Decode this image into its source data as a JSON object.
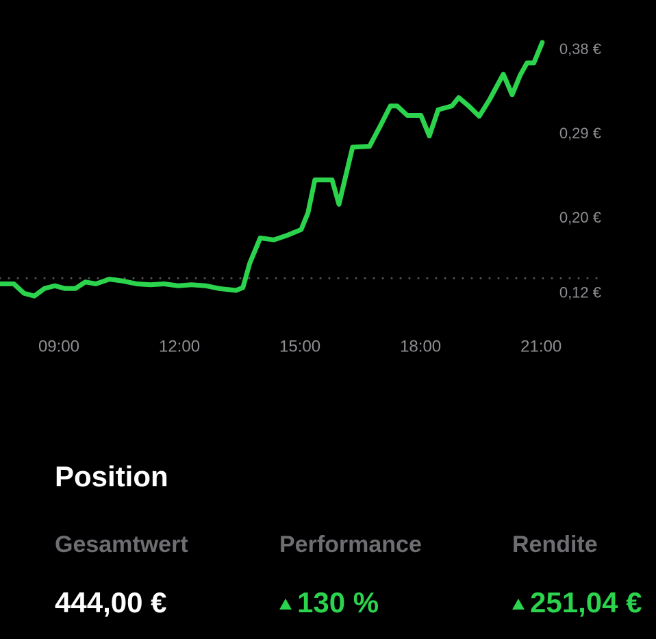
{
  "chart_data": {
    "type": "line",
    "color": "#2bd44c",
    "reference_line": 0.135,
    "x": [
      7.53,
      7.88,
      8.13,
      8.39,
      8.64,
      8.9,
      9.15,
      9.41,
      9.66,
      9.92,
      10.26,
      10.6,
      10.94,
      11.28,
      11.62,
      11.96,
      12.3,
      12.65,
      12.99,
      13.41,
      13.58,
      13.75,
      14.01,
      14.35,
      14.69,
      15.03,
      15.2,
      15.37,
      15.8,
      15.97,
      16.31,
      16.73,
      16.99,
      17.25,
      17.42,
      17.67,
      18.01,
      18.22,
      18.44,
      18.78,
      18.95,
      19.2,
      19.46,
      19.72,
      20.06,
      20.28,
      20.48,
      20.65,
      20.82,
      21.03
    ],
    "values": [
      0.129,
      0.129,
      0.119,
      0.116,
      0.124,
      0.127,
      0.124,
      0.124,
      0.131,
      0.129,
      0.134,
      0.132,
      0.129,
      0.128,
      0.129,
      0.127,
      0.128,
      0.127,
      0.124,
      0.122,
      0.125,
      0.151,
      0.178,
      0.176,
      0.181,
      0.187,
      0.205,
      0.24,
      0.24,
      0.214,
      0.275,
      0.276,
      0.297,
      0.319,
      0.319,
      0.309,
      0.309,
      0.287,
      0.315,
      0.319,
      0.328,
      0.319,
      0.308,
      0.326,
      0.353,
      0.331,
      0.352,
      0.365,
      0.365,
      0.387
    ],
    "xlim": [
      7.535,
      23.86
    ],
    "ylim": [
      0.103,
      0.403
    ],
    "xticks": [
      {
        "value": 9,
        "label": "09:00"
      },
      {
        "value": 12,
        "label": "12:00"
      },
      {
        "value": 15,
        "label": "15:00"
      },
      {
        "value": 18,
        "label": "18:00"
      },
      {
        "value": 21,
        "label": "21:00"
      }
    ],
    "yticks": [
      {
        "value": 0.38,
        "label": "0,38 €"
      },
      {
        "value": 0.29,
        "label": "0,29 €"
      },
      {
        "value": 0.2,
        "label": "0,20 €"
      },
      {
        "value": 0.12,
        "label": "0,12 €"
      }
    ]
  },
  "position": {
    "title": "Position",
    "columns": [
      {
        "label": "Gesamtwert",
        "value": "444,00 €"
      },
      {
        "label": "Performance",
        "value": "130 %"
      },
      {
        "label": "Rendite",
        "value": "251,04 €"
      }
    ]
  }
}
